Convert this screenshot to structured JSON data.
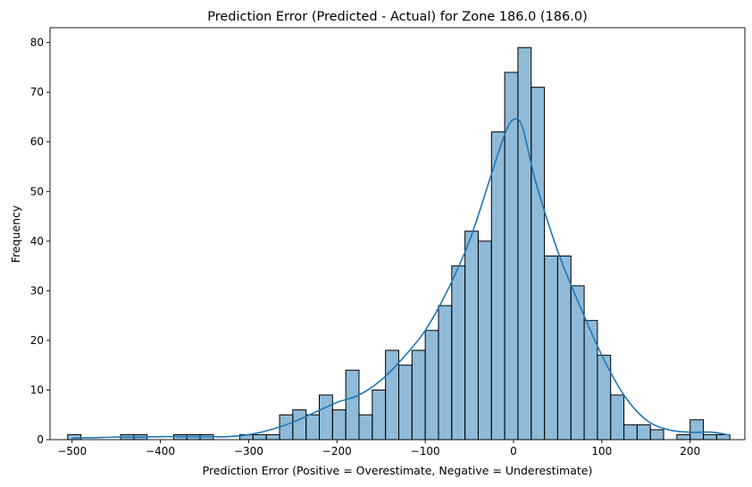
{
  "chart_data": {
    "type": "bar",
    "subtype": "histogram-with-kde",
    "title": "Prediction Error (Predicted - Actual) for Zone 186.0 (186.0)",
    "xlabel": "Prediction Error (Positive = Overestimate, Negative = Underestimate)",
    "ylabel": "Frequency",
    "xlim": [
      -525,
      262
    ],
    "ylim": [
      0,
      83
    ],
    "xticks": [
      -500,
      -400,
      -300,
      -200,
      -100,
      0,
      100,
      200
    ],
    "xtick_labels": [
      "−500",
      "−400",
      "−300",
      "−200",
      "−100",
      "0",
      "100",
      "200"
    ],
    "yticks": [
      0,
      10,
      20,
      30,
      40,
      50,
      60,
      70,
      80
    ],
    "ytick_labels": [
      "0",
      "10",
      "20",
      "30",
      "40",
      "50",
      "60",
      "70",
      "80"
    ],
    "grid": false,
    "bar_color": "#1f77b4",
    "bar_alpha": 0.5,
    "edge_color": "#000000",
    "kde_color": "#1f77b4",
    "bins": {
      "start": -505,
      "width": 15.0,
      "counts": [
        1,
        0,
        0,
        0,
        1,
        1,
        0,
        0,
        1,
        1,
        1,
        0,
        0,
        1,
        1,
        1,
        5,
        6,
        5,
        9,
        6,
        14,
        5,
        10,
        18,
        15,
        18,
        22,
        27,
        35,
        42,
        40,
        62,
        74,
        79,
        71,
        37,
        37,
        31,
        24,
        17,
        9,
        3,
        3,
        2,
        0,
        1,
        4,
        1,
        1
      ]
    },
    "kde": {
      "x": [
        -500,
        -475,
        -450,
        -425,
        -400,
        -375,
        -350,
        -325,
        -300,
        -275,
        -250,
        -225,
        -200,
        -175,
        -150,
        -125,
        -100,
        -75,
        -50,
        -25,
        -10,
        0,
        10,
        25,
        50,
        75,
        100,
        125,
        150,
        175,
        200,
        225,
        245
      ],
      "y": [
        0.3,
        0.4,
        0.5,
        0.5,
        0.6,
        0.6,
        0.6,
        0.6,
        1.0,
        2.0,
        3.5,
        5.5,
        7.5,
        9.0,
        12.0,
        16.5,
        22.0,
        30.0,
        40.0,
        53.5,
        61.5,
        64.5,
        63.0,
        52.0,
        38.0,
        27.0,
        17.0,
        9.0,
        4.0,
        2.0,
        1.5,
        1.5,
        0.9
      ]
    }
  }
}
